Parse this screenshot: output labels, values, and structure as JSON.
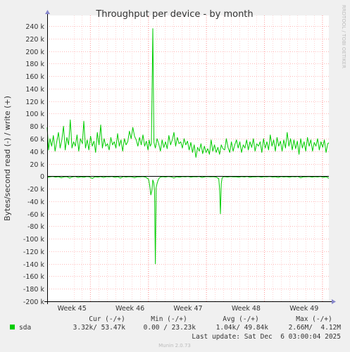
{
  "chart_data": {
    "type": "line",
    "title": "Throughput per device - by month",
    "ylabel": "Bytes/second read (-) / write (+)",
    "side_label": "RRDTOOL / TOBI OETIKER",
    "footer": "Munin 2.0.73",
    "ylim": [
      -200000,
      245000
    ],
    "yticks": [
      {
        "value": 240000,
        "label": "240 k"
      },
      {
        "value": 220000,
        "label": "220 k"
      },
      {
        "value": 200000,
        "label": "200 k"
      },
      {
        "value": 180000,
        "label": "180 k"
      },
      {
        "value": 160000,
        "label": "160 k"
      },
      {
        "value": 140000,
        "label": "140 k"
      },
      {
        "value": 120000,
        "label": "120 k"
      },
      {
        "value": 100000,
        "label": "100 k"
      },
      {
        "value": 80000,
        "label": "80 k"
      },
      {
        "value": 60000,
        "label": "60 k"
      },
      {
        "value": 40000,
        "label": "40 k"
      },
      {
        "value": 20000,
        "label": "20 k"
      },
      {
        "value": 0,
        "label": "0"
      },
      {
        "value": -20000,
        "label": "-20 k"
      },
      {
        "value": -40000,
        "label": "-40 k"
      },
      {
        "value": -60000,
        "label": "-60 k"
      },
      {
        "value": -80000,
        "label": "-80 k"
      },
      {
        "value": -100000,
        "label": "-100 k"
      },
      {
        "value": -120000,
        "label": "-120 k"
      },
      {
        "value": -140000,
        "label": "-140 k"
      },
      {
        "value": -160000,
        "label": "-160 k"
      },
      {
        "value": -180000,
        "label": "-180 k"
      },
      {
        "value": -200000,
        "label": "-200 k"
      }
    ],
    "xlim": [
      0,
      100
    ],
    "xticks": [
      {
        "x": 15.3,
        "label": "Week 45"
      },
      {
        "x": 35.9,
        "label": "Week 46"
      },
      {
        "x": 56.5,
        "label": "Week 47"
      },
      {
        "x": 77.1,
        "label": "Week 48"
      },
      {
        "x": 97.7,
        "label": "Week 49"
      }
    ],
    "grid": true,
    "colors": {
      "series": "#00cc00",
      "grid_minor": "#ffaaaa",
      "grid_major": "#ff7777",
      "axis": "#000000"
    },
    "series": [
      {
        "name": "sda",
        "role": "write",
        "points": [
          [
            0,
            78000
          ],
          [
            0.5,
            42000
          ],
          [
            1,
            60000
          ],
          [
            1.6,
            48000
          ],
          [
            2.2,
            65000
          ],
          [
            2.8,
            40000
          ],
          [
            3.4,
            55000
          ],
          [
            4,
            70000
          ],
          [
            4.6,
            45000
          ],
          [
            5.2,
            58000
          ],
          [
            5.8,
            80000
          ],
          [
            6.4,
            42000
          ],
          [
            7,
            62000
          ],
          [
            7.6,
            50000
          ],
          [
            8.2,
            90000
          ],
          [
            8.8,
            45000
          ],
          [
            9.4,
            55000
          ],
          [
            10,
            48000
          ],
          [
            10.6,
            66000
          ],
          [
            11.2,
            40000
          ],
          [
            11.8,
            60000
          ],
          [
            12.5,
            52000
          ],
          [
            13,
            88000
          ],
          [
            13.6,
            45000
          ],
          [
            14.2,
            58000
          ],
          [
            14.8,
            42000
          ],
          [
            15.4,
            64000
          ],
          [
            16,
            48000
          ],
          [
            16.6,
            56000
          ],
          [
            17.2,
            38000
          ],
          [
            17.8,
            70000
          ],
          [
            18.4,
            50000
          ],
          [
            19,
            82000
          ],
          [
            19.6,
            45000
          ],
          [
            20.2,
            60000
          ],
          [
            20.8,
            48000
          ],
          [
            21.4,
            52000
          ],
          [
            22,
            42000
          ],
          [
            22.6,
            62000
          ],
          [
            23.2,
            50000
          ],
          [
            23.8,
            55000
          ],
          [
            24.4,
            45000
          ],
          [
            25,
            68000
          ],
          [
            25.6,
            48000
          ],
          [
            26.2,
            58000
          ],
          [
            26.8,
            40000
          ],
          [
            27.4,
            60000
          ],
          [
            28,
            50000
          ],
          [
            28.6,
            55000
          ],
          [
            29.2,
            72000
          ],
          [
            29.8,
            60000
          ],
          [
            30.4,
            78000
          ],
          [
            31,
            64000
          ],
          [
            31.6,
            58000
          ],
          [
            32.2,
            48000
          ],
          [
            32.8,
            62000
          ],
          [
            33.4,
            50000
          ],
          [
            34,
            66000
          ],
          [
            34.6,
            48000
          ],
          [
            35.2,
            56000
          ],
          [
            35.8,
            42000
          ],
          [
            36.2,
            58000
          ],
          [
            36.6,
            48000
          ],
          [
            37,
            52000
          ],
          [
            37.5,
            236000
          ],
          [
            37.9,
            54000
          ],
          [
            38.4,
            45000
          ],
          [
            39,
            60000
          ],
          [
            39.6,
            52000
          ],
          [
            40.2,
            40000
          ],
          [
            40.8,
            58000
          ],
          [
            41.4,
            46000
          ],
          [
            42,
            55000
          ],
          [
            42.6,
            44000
          ],
          [
            43.2,
            65000
          ],
          [
            43.8,
            50000
          ],
          [
            44.4,
            58000
          ],
          [
            45,
            70000
          ],
          [
            45.6,
            48000
          ],
          [
            46.2,
            62000
          ],
          [
            46.8,
            52000
          ],
          [
            47.4,
            55000
          ],
          [
            48,
            45000
          ],
          [
            48.6,
            60000
          ],
          [
            49.2,
            50000
          ],
          [
            49.8,
            56000
          ],
          [
            50.4,
            42000
          ],
          [
            51,
            54000
          ],
          [
            51.6,
            38000
          ],
          [
            52.2,
            50000
          ],
          [
            52.8,
            30000
          ],
          [
            53.4,
            46000
          ],
          [
            54,
            40000
          ],
          [
            54.6,
            52000
          ],
          [
            55.2,
            36000
          ],
          [
            55.8,
            48000
          ],
          [
            56.4,
            38000
          ],
          [
            57,
            44000
          ],
          [
            57.6,
            35000
          ],
          [
            58.2,
            58000
          ],
          [
            58.8,
            40000
          ],
          [
            59.4,
            50000
          ],
          [
            60,
            38000
          ],
          [
            60.6,
            46000
          ],
          [
            61.2,
            35000
          ],
          [
            61.8,
            50000
          ],
          [
            62.4,
            44000
          ],
          [
            63,
            42000
          ],
          [
            63.6,
            60000
          ],
          [
            64.2,
            46000
          ],
          [
            64.8,
            38000
          ],
          [
            65.4,
            55000
          ],
          [
            66,
            40000
          ],
          [
            66.6,
            50000
          ],
          [
            67.2,
            58000
          ],
          [
            67.8,
            45000
          ],
          [
            68.4,
            55000
          ],
          [
            69,
            38000
          ],
          [
            69.6,
            50000
          ],
          [
            70.2,
            45000
          ],
          [
            70.8,
            58000
          ],
          [
            71.4,
            42000
          ],
          [
            72,
            55000
          ],
          [
            72.6,
            46000
          ],
          [
            73.2,
            60000
          ],
          [
            73.8,
            40000
          ],
          [
            74.4,
            52000
          ],
          [
            75,
            48000
          ],
          [
            75.6,
            55000
          ],
          [
            76.2,
            38000
          ],
          [
            76.8,
            60000
          ],
          [
            77.4,
            45000
          ],
          [
            78,
            55000
          ],
          [
            78.6,
            42000
          ],
          [
            79.2,
            66000
          ],
          [
            79.8,
            48000
          ],
          [
            80.4,
            58000
          ],
          [
            81,
            40000
          ],
          [
            81.6,
            62000
          ],
          [
            82.2,
            48000
          ],
          [
            82.8,
            56000
          ],
          [
            83.4,
            40000
          ],
          [
            84,
            58000
          ],
          [
            84.6,
            45000
          ],
          [
            85.2,
            70000
          ],
          [
            85.8,
            48000
          ],
          [
            86.4,
            60000
          ],
          [
            87,
            42000
          ],
          [
            87.6,
            58000
          ],
          [
            88.2,
            44000
          ],
          [
            88.8,
            56000
          ],
          [
            89.4,
            35000
          ],
          [
            90,
            60000
          ],
          [
            90.6,
            45000
          ],
          [
            91.2,
            55000
          ],
          [
            91.8,
            40000
          ],
          [
            92.4,
            62000
          ],
          [
            93,
            48000
          ],
          [
            93.6,
            58000
          ],
          [
            94.2,
            40000
          ],
          [
            94.8,
            54000
          ],
          [
            95.4,
            48000
          ],
          [
            96,
            60000
          ],
          [
            96.6,
            42000
          ],
          [
            97.2,
            55000
          ],
          [
            97.8,
            46000
          ],
          [
            98.4,
            58000
          ],
          [
            99,
            38000
          ],
          [
            99.6,
            52000
          ],
          [
            100,
            53470
          ]
        ]
      },
      {
        "name": "sda",
        "role": "read",
        "points": [
          [
            0,
            -2000
          ],
          [
            1,
            -1000
          ],
          [
            2,
            -500
          ],
          [
            3,
            -1500
          ],
          [
            4,
            -800
          ],
          [
            5,
            -2500
          ],
          [
            6,
            -1200
          ],
          [
            7,
            -800
          ],
          [
            8,
            -3000
          ],
          [
            9,
            -1000
          ],
          [
            10,
            -600
          ],
          [
            11,
            -2000
          ],
          [
            12,
            -900
          ],
          [
            13,
            -1800
          ],
          [
            14,
            -700
          ],
          [
            15,
            -1200
          ],
          [
            16,
            -3500
          ],
          [
            17,
            -900
          ],
          [
            18,
            -1500
          ],
          [
            19,
            -700
          ],
          [
            20,
            -2200
          ],
          [
            21,
            -800
          ],
          [
            22,
            -1200
          ],
          [
            23,
            -600
          ],
          [
            24,
            -1800
          ],
          [
            25,
            -900
          ],
          [
            26,
            -3000
          ],
          [
            27,
            -700
          ],
          [
            28,
            -1400
          ],
          [
            29,
            -800
          ],
          [
            30,
            -1100
          ],
          [
            31,
            -2500
          ],
          [
            32,
            -900
          ],
          [
            33,
            -1200
          ],
          [
            34,
            -700
          ],
          [
            35,
            -1600
          ],
          [
            36,
            -5000
          ],
          [
            36.4,
            -15000
          ],
          [
            36.8,
            -30000
          ],
          [
            37.2,
            -22000
          ],
          [
            37.5,
            -6000
          ],
          [
            37.8,
            -10000
          ],
          [
            38.1,
            -22000
          ],
          [
            38.4,
            -140000
          ],
          [
            38.7,
            -18000
          ],
          [
            39,
            -12000
          ],
          [
            39.4,
            -6000
          ],
          [
            39.8,
            -3000
          ],
          [
            40.2,
            -1500
          ],
          [
            41,
            -800
          ],
          [
            42,
            -1400
          ],
          [
            43,
            -600
          ],
          [
            44,
            -1200
          ],
          [
            45,
            -2800
          ],
          [
            46,
            -900
          ],
          [
            47,
            -1600
          ],
          [
            48,
            -700
          ],
          [
            49,
            -1100
          ],
          [
            50,
            -600
          ],
          [
            51,
            -1500
          ],
          [
            52,
            -800
          ],
          [
            53,
            -1000
          ],
          [
            54,
            -600
          ],
          [
            55,
            -2000
          ],
          [
            56,
            -900
          ],
          [
            57,
            -700
          ],
          [
            58,
            -1200
          ],
          [
            59,
            -800
          ],
          [
            60,
            -1500
          ],
          [
            60.9,
            -4000
          ],
          [
            61.2,
            -20000
          ],
          [
            61.5,
            -60000
          ],
          [
            61.8,
            -12000
          ],
          [
            62.1,
            -3000
          ],
          [
            62.5,
            -1200
          ],
          [
            63,
            -800
          ],
          [
            64,
            -1400
          ],
          [
            65,
            -700
          ],
          [
            66,
            -1100
          ],
          [
            67,
            -900
          ],
          [
            68,
            -1600
          ],
          [
            69,
            -700
          ],
          [
            70,
            -1300
          ],
          [
            71,
            -600
          ],
          [
            72,
            -1800
          ],
          [
            73,
            -900
          ],
          [
            74,
            -1200
          ],
          [
            75,
            -700
          ],
          [
            76,
            -1500
          ],
          [
            77,
            -800
          ],
          [
            78,
            -1100
          ],
          [
            79,
            -600
          ],
          [
            80,
            -1400
          ],
          [
            81,
            -900
          ],
          [
            82,
            -2000
          ],
          [
            83,
            -700
          ],
          [
            84,
            -1300
          ],
          [
            85,
            -800
          ],
          [
            86,
            -1600
          ],
          [
            87,
            -700
          ],
          [
            88,
            -1200
          ],
          [
            89,
            -600
          ],
          [
            90,
            -2500
          ],
          [
            91,
            -900
          ],
          [
            92,
            -1100
          ],
          [
            93,
            -700
          ],
          [
            94,
            -1500
          ],
          [
            95,
            -800
          ],
          [
            96,
            -1300
          ],
          [
            97,
            -600
          ],
          [
            98,
            -1800
          ],
          [
            99,
            -900
          ],
          [
            100,
            -3320
          ]
        ]
      }
    ],
    "legend": {
      "headers": {
        "cur": "Cur (-/+)",
        "min": "Min (-/+)",
        "avg": "Avg (-/+)",
        "max": "Max (-/+)"
      },
      "rows": [
        {
          "name": "sda",
          "cur": "3.32k/ 53.47k",
          "min": "0.00 / 23.23k",
          "avg": "1.04k/ 49.84k",
          "max": "2.66M/  4.12M"
        }
      ],
      "last_update": "Last update: Sat Dec  6 03:00:04 2025"
    }
  }
}
